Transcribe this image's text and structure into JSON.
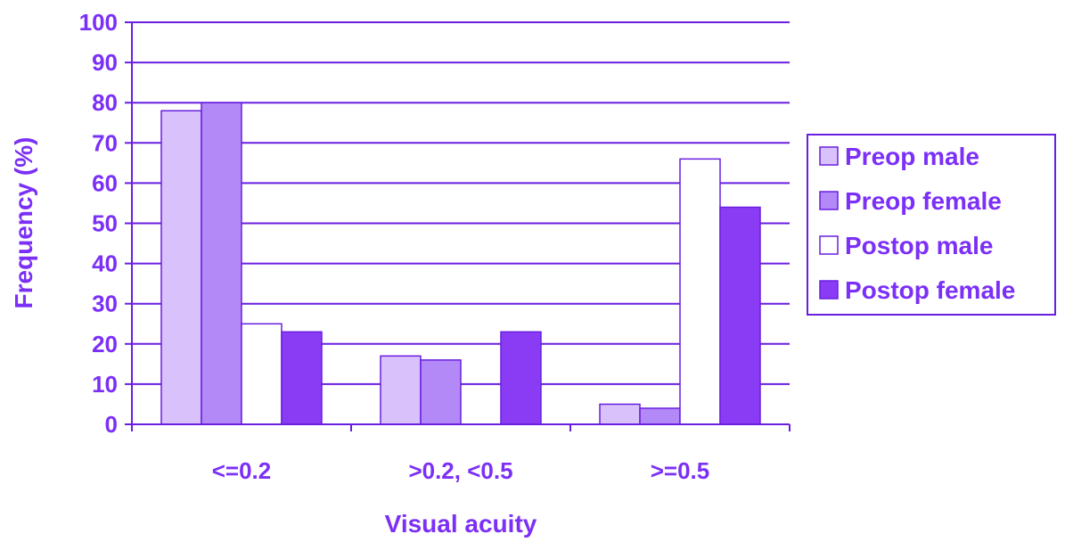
{
  "colors": {
    "axis": "#6a1fe0",
    "text": "#7b2ff7",
    "grid": "#6a1fe0",
    "bar_stroke": "#6a1fe0"
  },
  "chart_data": {
    "type": "bar",
    "categories": [
      "<=0.2",
      ">0.2, <0.5",
      ">=0.5"
    ],
    "series": [
      {
        "name": "Preop male",
        "color": "#d9c2fb",
        "values": [
          78,
          17,
          5
        ]
      },
      {
        "name": "Preop female",
        "color": "#b388f7",
        "values": [
          80,
          16,
          4
        ]
      },
      {
        "name": "Postop male",
        "color": "#ffffff",
        "values": [
          25,
          0,
          66
        ]
      },
      {
        "name": "Postop female",
        "color": "#8a3cf5",
        "values": [
          23,
          23,
          54
        ]
      }
    ],
    "xlabel": "Visual acuity",
    "ylabel": "Frequency (%)",
    "ylim": [
      0,
      100
    ],
    "yticks": [
      0,
      10,
      20,
      30,
      40,
      50,
      60,
      70,
      80,
      90,
      100
    ],
    "grid": true,
    "legend_position": "right"
  }
}
